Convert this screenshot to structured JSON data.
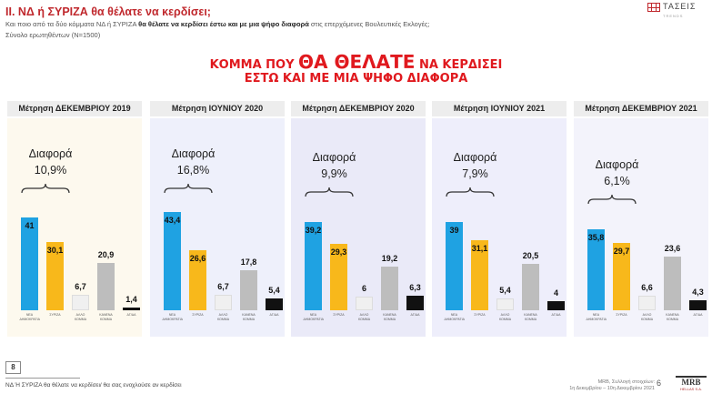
{
  "header": {
    "title": "II. ΝΔ  ή ΣΥΡΙΖΑ θα θέλατε να κερδίσει;",
    "question_start": "Και ποιο από τα δύο κόμματα ΝΔ ή ΣΥΡΙΖΑ ",
    "question_bold": "θα θέλατε να κερδίσει έστω και με μια ψήφο διαφορά",
    "question_end": " στις επερχόμενες Βουλευτικές Εκλογές;",
    "base": "Σύνολο ερωτηθέντων (N=1500)",
    "logo_text": "ΤΑΣΕΙΣ",
    "logo_sub": "TRENDS"
  },
  "headline": {
    "line1_start": "ΚΟΜΜΑ ΠΟΥ ",
    "line1_big": "ΘΑ ΘΕΛΑΤΕ",
    "line1_end": " ΝΑ ΚΕΡΔΙΣΕΙ",
    "line2": "ΕΣΤΩ ΚΑΙ ΜΕ ΜΙΑ ΨΗΦΟ ΔΙΑΦΟΡΑ"
  },
  "colors": {
    "nd": "#1fa2e2",
    "syriza": "#f8b81b",
    "other": "#f0f0f0",
    "none": "#bdbdbd",
    "dk": "#111111",
    "red": "#e0191e"
  },
  "chart_data": [
    {
      "type": "bar",
      "title": "Μέτρηση ΔΕΚΕΜΒΡΙΟΥ 2019",
      "categories": [
        "ΝΕΑ ΔΗΜΟΚΡΑΤΙΑ",
        "ΣΥΡΙΖΑ",
        "ΑΛΛΟ ΚΟΜΜΑ",
        "ΚΑΝΕΝΑ ΚΟΜΜΑ",
        "ΔΓ/ΔΑ"
      ],
      "values": [
        41,
        30.1,
        6.7,
        20.9,
        1.4
      ],
      "labels": [
        "41",
        "30,1",
        "6,7",
        "20,9",
        "1,4"
      ],
      "difference_label": "Διαφορά",
      "difference_value": "10,9%",
      "panel_bg": "#fdf9ee"
    },
    {
      "type": "bar",
      "title": "Μέτρηση ΙΟΥΝΙΟΥ 2020",
      "categories": [
        "ΝΕΑ ΔΗΜΟΚΡΑΤΙΑ",
        "ΣΥΡΙΖΑ",
        "ΑΛΛΟ ΚΟΜΜΑ",
        "ΚΑΝΕΝΑ ΚΟΜΜΑ",
        "ΔΓ/ΔΑ"
      ],
      "values": [
        43.4,
        26.6,
        6.7,
        17.8,
        5.4
      ],
      "labels": [
        "43,4",
        "26,6",
        "6,7",
        "17,8",
        "5,4"
      ],
      "difference_label": "Διαφορά",
      "difference_value": "16,8%",
      "panel_bg": "#eef0fb"
    },
    {
      "type": "bar",
      "title": "Μέτρηση ΔΕΚΕΜΒΡΙΟΥ 2020",
      "categories": [
        "ΝΕΑ ΔΗΜΟΚΡΑΤΙΑ",
        "ΣΥΡΙΖΑ",
        "ΑΛΛΟ ΚΟΜΜΑ",
        "ΚΑΝΕΝΑ ΚΟΜΜΑ",
        "ΔΓ/ΔΑ"
      ],
      "values": [
        39.2,
        29.3,
        6,
        19.2,
        6.3
      ],
      "labels": [
        "39,2",
        "29,3",
        "6",
        "19,2",
        "6,3"
      ],
      "difference_label": "Διαφορά",
      "difference_value": "9,9%",
      "panel_bg": "#eaeaf8"
    },
    {
      "type": "bar",
      "title": "Μέτρηση ΙΟΥΝΙΟΥ 2021",
      "categories": [
        "ΝΕΑ ΔΗΜΟΚΡΑΤΙΑ",
        "ΣΥΡΙΖΑ",
        "ΑΛΛΟ ΚΟΜΜΑ",
        "ΚΑΝΕΝΑ ΚΟΜΜΑ",
        "ΔΓ/ΔΑ"
      ],
      "values": [
        39,
        31.1,
        5.4,
        20.5,
        4
      ],
      "labels": [
        "39",
        "31,1",
        "5,4",
        "20,5",
        "4"
      ],
      "difference_label": "Διαφορά",
      "difference_value": "7,9%",
      "panel_bg": "#eeeefb"
    },
    {
      "type": "bar",
      "title": "Μέτρηση ΔΕΚΕΜΒΡΙΟΥ 2021",
      "categories": [
        "ΝΕΑ ΔΗΜΟΚΡΑΤΙΑ",
        "ΣΥΡΙΖΑ",
        "ΑΛΛΟ ΚΟΜΜΑ",
        "ΚΑΝΕΝΑ ΚΟΜΜΑ",
        "ΔΓ/ΔΑ"
      ],
      "values": [
        35.8,
        29.7,
        6.6,
        23.6,
        4.3
      ],
      "labels": [
        "35,8",
        "29,7",
        "6,6",
        "23,6",
        "4,3"
      ],
      "difference_label": "Διαφορά",
      "difference_value": "6,1%",
      "panel_bg": "#f3f3fb"
    }
  ],
  "footer": {
    "page_box": "8",
    "note": "ΝΔ Ή ΣΥΡΙΖΑ θα θέλατε να κερδίσει/ θα σας ενοχλούσε αν κερδίσει",
    "source_line1": "MRB, Συλλογή στοιχείων:",
    "source_line2": "1η Δεκεμβρίου – 10η Δεκεμβρίου 2021",
    "page_number": "6",
    "mrb_logo": "MRB",
    "mrb_sub": "HELLAS S.A."
  }
}
